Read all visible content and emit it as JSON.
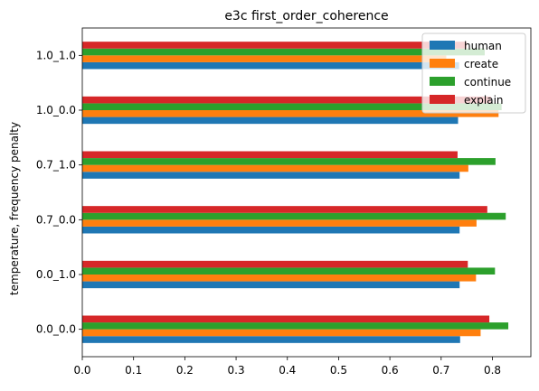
{
  "chart_data": {
    "type": "bar",
    "orientation": "horizontal",
    "title": "e3c first_order_coherence",
    "xlabel": "",
    "ylabel": "temperature, frequency penalty",
    "categories": [
      "0.0_0.0",
      "0.0_1.0",
      "0.7_0.0",
      "0.7_1.0",
      "1.0_0.0",
      "1.0_1.0"
    ],
    "series": [
      {
        "name": "human",
        "color": "#1f77b4",
        "values": [
          0.737,
          0.736,
          0.736,
          0.736,
          0.733,
          0.735
        ]
      },
      {
        "name": "create",
        "color": "#ff7f0e",
        "values": [
          0.777,
          0.768,
          0.769,
          0.753,
          0.812,
          0.71
        ]
      },
      {
        "name": "continue",
        "color": "#2ca02c",
        "values": [
          0.831,
          0.805,
          0.826,
          0.806,
          0.818,
          0.785
        ]
      },
      {
        "name": "explain",
        "color": "#d62728",
        "values": [
          0.794,
          0.752,
          0.79,
          0.732,
          0.797,
          0.75
        ]
      }
    ],
    "xlim": [
      0,
      0.875
    ],
    "xticks": [
      "0.0",
      "0.1",
      "0.2",
      "0.3",
      "0.4",
      "0.5",
      "0.6",
      "0.7",
      "0.8"
    ],
    "grid": false,
    "legend_position": "top-right"
  }
}
